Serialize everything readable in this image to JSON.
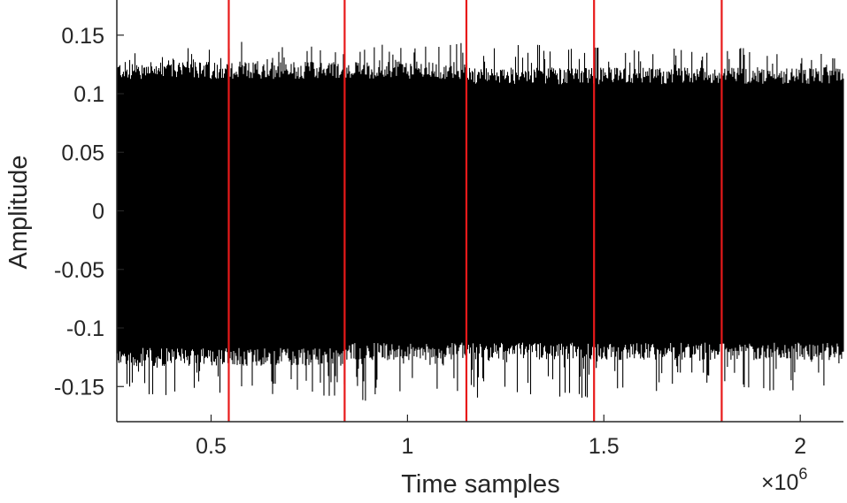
{
  "chart_data": {
    "type": "line",
    "title": "",
    "xlabel": "Time samples",
    "ylabel": "Amplitude",
    "x_exponent_label": "×10",
    "x_exponent": "6",
    "xlim": [
      260000,
      2110000
    ],
    "ylim": [
      -0.18,
      0.18
    ],
    "xticks": [
      500000,
      1000000,
      1500000,
      2000000
    ],
    "xtick_labels": [
      "0.5",
      "1",
      "1.5",
      "2"
    ],
    "yticks": [
      0.15,
      0.1,
      0.05,
      0,
      -0.05,
      -0.1,
      -0.15
    ],
    "ytick_labels": [
      "0.15",
      "0.1",
      "0.05",
      "0",
      "-0.05",
      "-0.1",
      "-0.15"
    ],
    "grid": false,
    "signal": {
      "color": "#000000",
      "segments": [
        {
          "x_start": 260000,
          "x_end": 545000,
          "upper_envelope": 0.125,
          "lower_envelope": -0.13,
          "upper_peak": 0.14,
          "lower_peak": -0.16
        },
        {
          "x_start": 545000,
          "x_end": 840000,
          "upper_envelope": 0.125,
          "lower_envelope": -0.13,
          "upper_peak": 0.145,
          "lower_peak": -0.16
        },
        {
          "x_start": 840000,
          "x_end": 1150000,
          "upper_envelope": 0.125,
          "lower_envelope": -0.125,
          "upper_peak": 0.145,
          "lower_peak": -0.165
        },
        {
          "x_start": 1150000,
          "x_end": 1475000,
          "upper_envelope": 0.12,
          "lower_envelope": -0.125,
          "upper_peak": 0.145,
          "lower_peak": -0.16
        },
        {
          "x_start": 1475000,
          "x_end": 1800000,
          "upper_envelope": 0.12,
          "lower_envelope": -0.125,
          "upper_peak": 0.14,
          "lower_peak": -0.155
        },
        {
          "x_start": 1800000,
          "x_end": 2110000,
          "upper_envelope": 0.12,
          "lower_envelope": -0.125,
          "upper_peak": 0.14,
          "lower_peak": -0.155
        }
      ]
    },
    "boundaries": {
      "color": "#e8191a",
      "x": [
        545000,
        840000,
        1150000,
        1475000,
        1800000
      ]
    }
  }
}
